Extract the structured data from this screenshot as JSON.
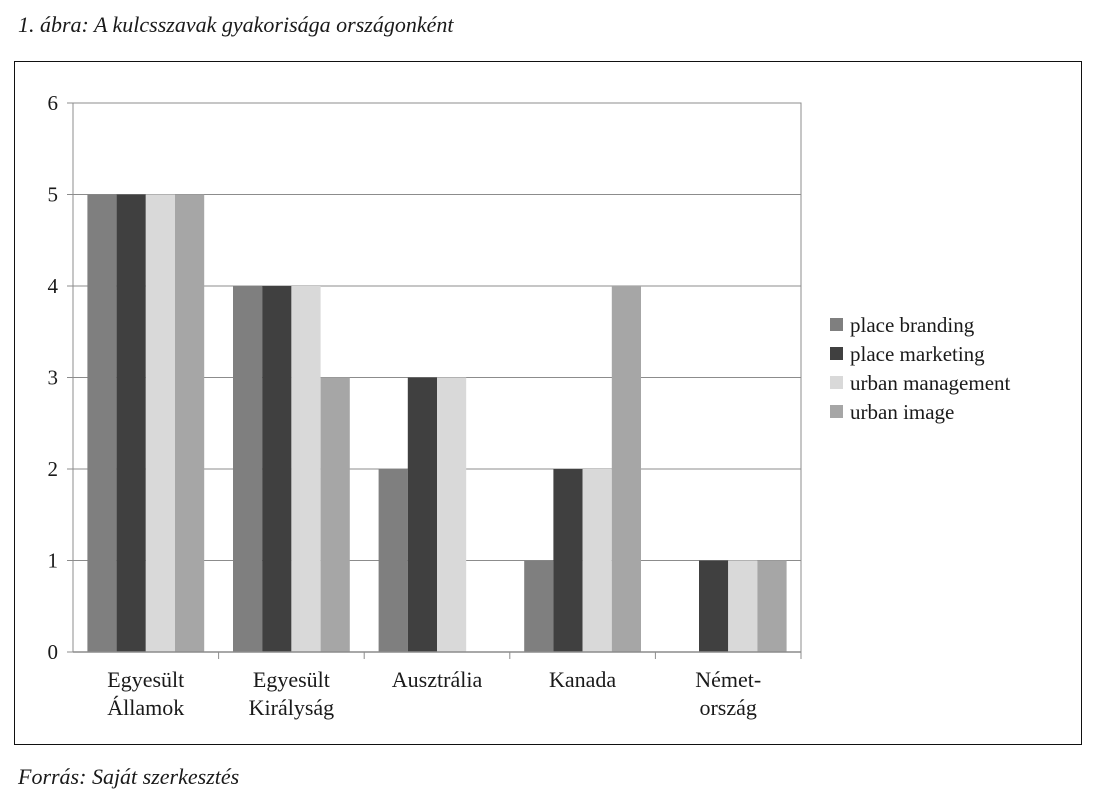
{
  "figure": {
    "title": "1. ábra: A kulcsszavak gyakorisága országonként",
    "source": "Forrás: Saját szerkesztés"
  },
  "chart_data": {
    "type": "bar",
    "title": "1. ábra: A kulcsszavak gyakorisága országonként",
    "xlabel": "",
    "ylabel": "",
    "ylim": [
      0,
      6
    ],
    "yticks": [
      0,
      1,
      2,
      3,
      4,
      5,
      6
    ],
    "grid": true,
    "legend_position": "right",
    "categories": [
      [
        "Egyesült",
        "Államok"
      ],
      [
        "Egyesült",
        "Királyság"
      ],
      [
        "Ausztrália"
      ],
      [
        "Kanada"
      ],
      [
        "Német-",
        "ország"
      ]
    ],
    "series": [
      {
        "name": "place branding",
        "color": "#7f7f7f",
        "values": [
          5,
          4,
          2,
          1,
          0
        ]
      },
      {
        "name": "place marketing",
        "color": "#404040",
        "values": [
          5,
          4,
          3,
          2,
          1
        ]
      },
      {
        "name": "urban management",
        "color": "#d9d9d9",
        "values": [
          5,
          4,
          3,
          2,
          1
        ]
      },
      {
        "name": "urban image",
        "color": "#a6a6a6",
        "values": [
          5,
          3,
          0,
          4,
          1
        ]
      }
    ]
  }
}
